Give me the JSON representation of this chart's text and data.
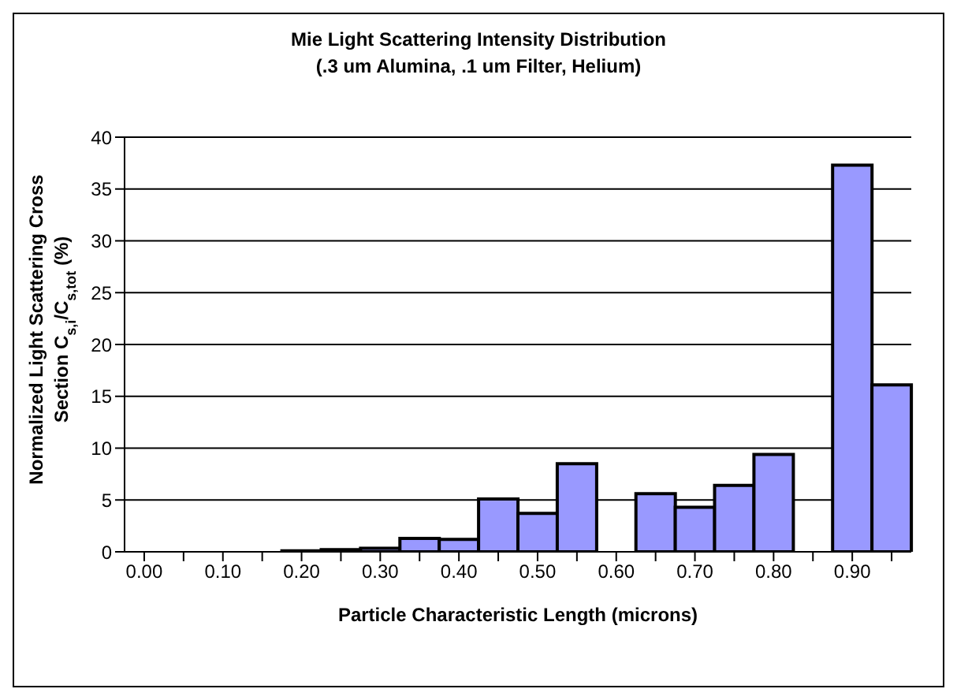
{
  "chart_data": {
    "type": "bar",
    "title": "Mie Light Scattering Intensity Distribution",
    "subtitle": "(.3 um Alumina, .1 um Filter, Helium)",
    "xlabel": "Particle Characteristic Length (microns)",
    "ylabel": "Normalized Light Scattering Cross Section C$_{s,i}$/C$_{s,tot}$ (%)",
    "categories": [
      "0.00",
      null,
      "0.10",
      null,
      "0.20",
      null,
      "0.30",
      null,
      "0.40",
      null,
      "0.50",
      null,
      "0.60",
      null,
      "0.70",
      null,
      "0.80",
      null,
      "0.90",
      null
    ],
    "values": [
      0,
      0,
      0,
      0,
      0.1,
      0.2,
      0.35,
      1.3,
      1.2,
      5.1,
      3.7,
      8.5,
      0,
      5.6,
      4.3,
      6.4,
      9.4,
      0,
      37.3,
      16.1
    ],
    "color": "#9999ff",
    "ylim": [
      0,
      40
    ],
    "yticks": [
      0,
      5,
      10,
      15,
      20,
      25,
      30,
      35,
      40
    ],
    "grid": "y"
  }
}
